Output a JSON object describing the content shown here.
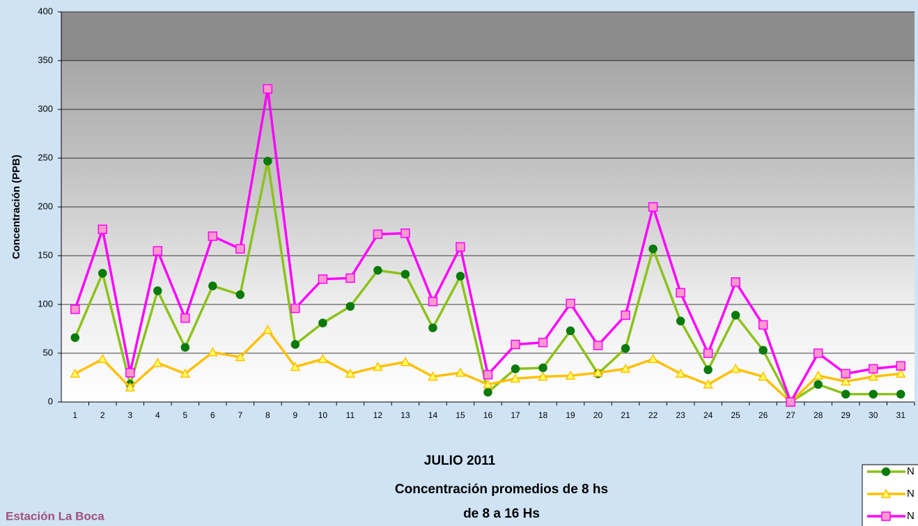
{
  "chart_data": {
    "type": "line",
    "title_lines": [
      "JULIO 2011",
      "Concentración promedios de 8 hs",
      "de 8 a 16 Hs"
    ],
    "station": "Estación La Boca",
    "y_label": "Concentración (PPB)",
    "categories": [
      "1",
      "2",
      "3",
      "4",
      "5",
      "6",
      "7",
      "8",
      "9",
      "10",
      "11",
      "12",
      "13",
      "14",
      "15",
      "16",
      "17",
      "18",
      "19",
      "20",
      "21",
      "22",
      "23",
      "24",
      "25",
      "26",
      "27",
      "28",
      "29",
      "30",
      "31"
    ],
    "series": [
      {
        "name": "N",
        "color": "#8cc21a",
        "marker": "circle",
        "marker_color": "#0a7a0a",
        "values": [
          66,
          132,
          18,
          114,
          56,
          119,
          110,
          247,
          59,
          81,
          98,
          135,
          131,
          76,
          129,
          10,
          34,
          35,
          73,
          29,
          55,
          157,
          83,
          33,
          89,
          53,
          0,
          18,
          8,
          8,
          8
        ]
      },
      {
        "name": "N",
        "color": "#ffc000",
        "marker": "triangle",
        "marker_color": "#ffff66",
        "values": [
          29,
          44,
          15,
          40,
          29,
          51,
          46,
          74,
          36,
          44,
          29,
          36,
          41,
          26,
          30,
          18,
          24,
          26,
          27,
          30,
          34,
          44,
          29,
          18,
          34,
          26,
          0,
          27,
          21,
          26,
          29
        ]
      },
      {
        "name": "N",
        "color": "#ff00ff",
        "marker": "square",
        "marker_color": "#ff99cc",
        "values": [
          95,
          177,
          30,
          155,
          86,
          170,
          157,
          321,
          96,
          126,
          127,
          172,
          173,
          103,
          159,
          28,
          59,
          61,
          101,
          58,
          89,
          200,
          112,
          50,
          123,
          79,
          0,
          50,
          29,
          34,
          37
        ]
      }
    ],
    "ylim": [
      0,
      400
    ],
    "yticks": [
      0,
      50,
      100,
      150,
      200,
      250,
      300,
      350,
      400
    ],
    "grid": true
  }
}
